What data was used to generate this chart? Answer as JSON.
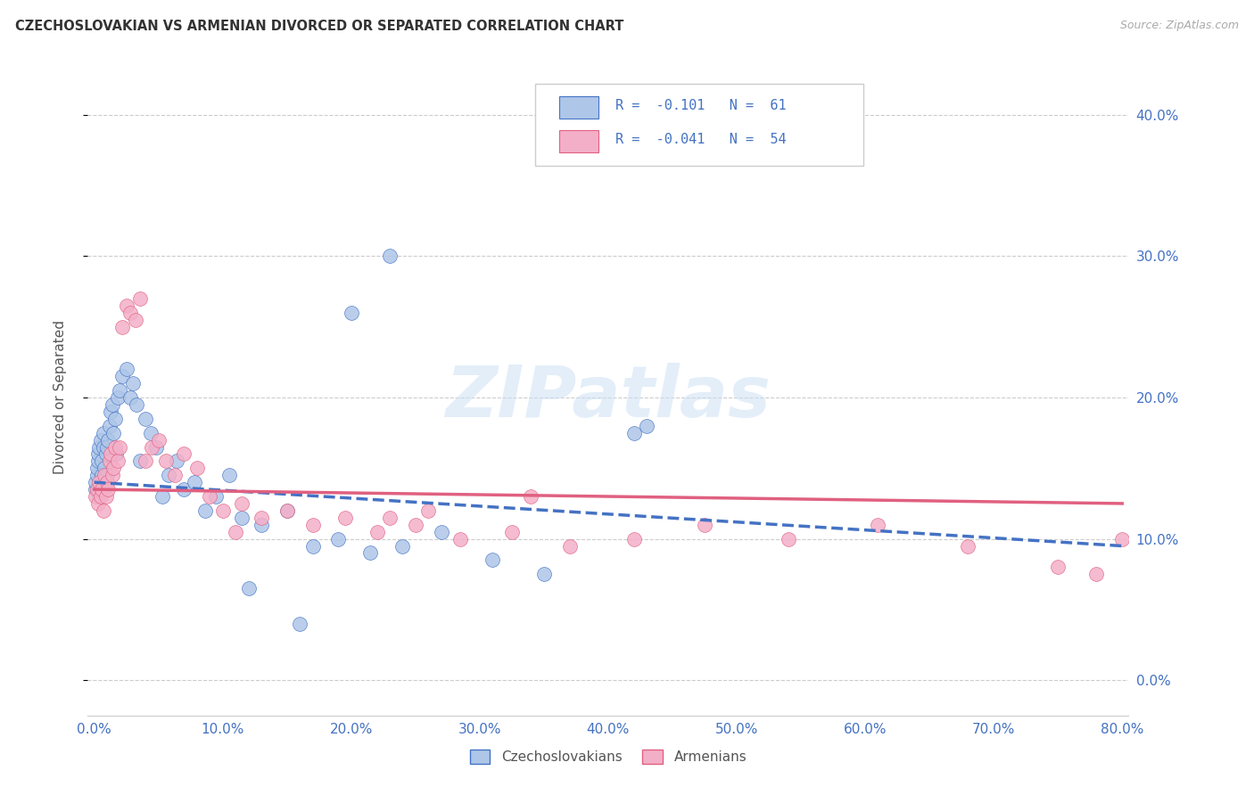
{
  "title": "CZECHOSLOVAKIAN VS ARMENIAN DIVORCED OR SEPARATED CORRELATION CHART",
  "source": "Source: ZipAtlas.com",
  "ylabel": "Divorced or Separated",
  "legend_label1": "Czechoslovakians",
  "legend_label2": "Armenians",
  "R1": "-0.101",
  "N1": "61",
  "R2": "-0.041",
  "N2": "54",
  "color1": "#aec6e8",
  "color2": "#f4afc8",
  "line_color1": "#4472c4",
  "line_color2": "#e06080",
  "watermark_text": "ZIPatlas",
  "xlim": [
    -0.005,
    0.805
  ],
  "ylim": [
    -0.025,
    0.425
  ],
  "xtick_vals": [
    0.0,
    0.1,
    0.2,
    0.3,
    0.4,
    0.5,
    0.6,
    0.7,
    0.8
  ],
  "ytick_vals": [
    0.0,
    0.1,
    0.2,
    0.3,
    0.4
  ],
  "czech_x": [
    0.001,
    0.001,
    0.002,
    0.002,
    0.003,
    0.003,
    0.004,
    0.004,
    0.005,
    0.005,
    0.006,
    0.006,
    0.007,
    0.007,
    0.008,
    0.008,
    0.009,
    0.01,
    0.01,
    0.011,
    0.012,
    0.013,
    0.014,
    0.015,
    0.016,
    0.017,
    0.018,
    0.02,
    0.022,
    0.025,
    0.028,
    0.03,
    0.033,
    0.036,
    0.04,
    0.044,
    0.048,
    0.053,
    0.058,
    0.064,
    0.07,
    0.078,
    0.086,
    0.095,
    0.105,
    0.115,
    0.13,
    0.15,
    0.17,
    0.19,
    0.215,
    0.24,
    0.27,
    0.31,
    0.35,
    0.2,
    0.23,
    0.43,
    0.12,
    0.16,
    0.42
  ],
  "czech_y": [
    0.135,
    0.14,
    0.145,
    0.15,
    0.155,
    0.16,
    0.13,
    0.165,
    0.17,
    0.135,
    0.145,
    0.155,
    0.175,
    0.165,
    0.14,
    0.15,
    0.16,
    0.145,
    0.165,
    0.17,
    0.18,
    0.19,
    0.195,
    0.175,
    0.185,
    0.16,
    0.2,
    0.205,
    0.215,
    0.22,
    0.2,
    0.21,
    0.195,
    0.155,
    0.185,
    0.175,
    0.165,
    0.13,
    0.145,
    0.155,
    0.135,
    0.14,
    0.12,
    0.13,
    0.145,
    0.115,
    0.11,
    0.12,
    0.095,
    0.1,
    0.09,
    0.095,
    0.105,
    0.085,
    0.075,
    0.26,
    0.3,
    0.18,
    0.065,
    0.04,
    0.175
  ],
  "armenian_x": [
    0.001,
    0.002,
    0.003,
    0.004,
    0.005,
    0.006,
    0.007,
    0.008,
    0.009,
    0.01,
    0.011,
    0.012,
    0.013,
    0.014,
    0.015,
    0.016,
    0.018,
    0.02,
    0.022,
    0.025,
    0.028,
    0.032,
    0.036,
    0.04,
    0.045,
    0.05,
    0.056,
    0.063,
    0.07,
    0.08,
    0.09,
    0.1,
    0.115,
    0.13,
    0.15,
    0.17,
    0.195,
    0.22,
    0.25,
    0.285,
    0.325,
    0.37,
    0.42,
    0.475,
    0.54,
    0.61,
    0.68,
    0.75,
    0.8,
    0.23,
    0.26,
    0.11,
    0.34,
    0.78
  ],
  "armenian_y": [
    0.13,
    0.135,
    0.125,
    0.14,
    0.13,
    0.135,
    0.12,
    0.145,
    0.13,
    0.14,
    0.135,
    0.155,
    0.16,
    0.145,
    0.15,
    0.165,
    0.155,
    0.165,
    0.25,
    0.265,
    0.26,
    0.255,
    0.27,
    0.155,
    0.165,
    0.17,
    0.155,
    0.145,
    0.16,
    0.15,
    0.13,
    0.12,
    0.125,
    0.115,
    0.12,
    0.11,
    0.115,
    0.105,
    0.11,
    0.1,
    0.105,
    0.095,
    0.1,
    0.11,
    0.1,
    0.11,
    0.095,
    0.08,
    0.1,
    0.115,
    0.12,
    0.105,
    0.13,
    0.075
  ]
}
